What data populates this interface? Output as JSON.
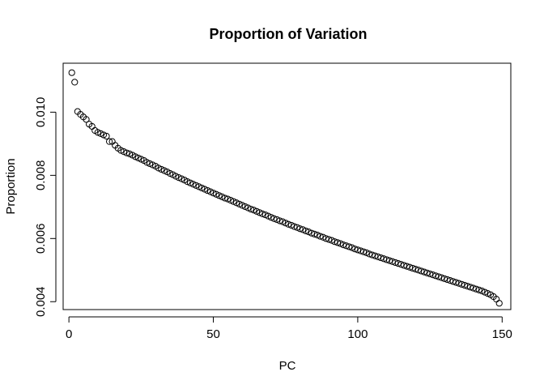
{
  "chart_data": {
    "type": "scatter",
    "title": "Proportion of Variation",
    "xlabel": "PC",
    "ylabel": "Proportion",
    "xlim": [
      -2,
      153
    ],
    "ylim": [
      0.00375,
      0.01155
    ],
    "xticks": [
      0,
      50,
      100,
      150
    ],
    "xtick_labels": [
      "0",
      "50",
      "100",
      "150"
    ],
    "yticks": [
      0.004,
      0.006,
      0.008,
      0.01
    ],
    "ytick_labels": [
      "0.004",
      "0.006",
      "0.008",
      "0.010"
    ],
    "grid": false,
    "marker": "open-circle",
    "color": "#000000",
    "x": [
      1,
      2,
      3,
      4,
      5,
      6,
      7,
      8,
      9,
      10,
      11,
      12,
      13,
      14,
      15,
      16,
      17,
      18,
      19,
      20,
      21,
      22,
      23,
      24,
      25,
      26,
      27,
      28,
      29,
      30,
      31,
      32,
      33,
      34,
      35,
      36,
      37,
      38,
      39,
      40,
      41,
      42,
      43,
      44,
      45,
      46,
      47,
      48,
      49,
      50,
      51,
      52,
      53,
      54,
      55,
      56,
      57,
      58,
      59,
      60,
      61,
      62,
      63,
      64,
      65,
      66,
      67,
      68,
      69,
      70,
      71,
      72,
      73,
      74,
      75,
      76,
      77,
      78,
      79,
      80,
      81,
      82,
      83,
      84,
      85,
      86,
      87,
      88,
      89,
      90,
      91,
      92,
      93,
      94,
      95,
      96,
      97,
      98,
      99,
      100,
      101,
      102,
      103,
      104,
      105,
      106,
      107,
      108,
      109,
      110,
      111,
      112,
      113,
      114,
      115,
      116,
      117,
      118,
      119,
      120,
      121,
      122,
      123,
      124,
      125,
      126,
      127,
      128,
      129,
      130,
      131,
      132,
      133,
      134,
      135,
      136,
      137,
      138,
      139,
      140,
      141,
      142,
      143,
      144,
      145,
      146,
      147,
      148,
      149
    ],
    "y": [
      0.01125,
      0.01095,
      0.01002,
      0.00993,
      0.00985,
      0.00977,
      0.00962,
      0.00955,
      0.00942,
      0.00936,
      0.00932,
      0.00928,
      0.00924,
      0.00907,
      0.00907,
      0.00895,
      0.00886,
      0.00879,
      0.00875,
      0.00871,
      0.00868,
      0.00864,
      0.00859,
      0.00855,
      0.00851,
      0.00847,
      0.00841,
      0.00837,
      0.00833,
      0.00829,
      0.00823,
      0.00819,
      0.00815,
      0.00811,
      0.00806,
      0.00802,
      0.00797,
      0.00793,
      0.00789,
      0.00785,
      0.0078,
      0.00776,
      0.00772,
      0.00768,
      0.00764,
      0.0076,
      0.00756,
      0.00752,
      0.00748,
      0.00744,
      0.0074,
      0.00736,
      0.00732,
      0.00728,
      0.00725,
      0.00721,
      0.00717,
      0.00713,
      0.00709,
      0.00705,
      0.00701,
      0.00697,
      0.00693,
      0.0069,
      0.00686,
      0.00682,
      0.00678,
      0.00675,
      0.00671,
      0.00667,
      0.00663,
      0.0066,
      0.00656,
      0.00653,
      0.00649,
      0.00645,
      0.00642,
      0.00638,
      0.00635,
      0.00631,
      0.00628,
      0.00624,
      0.00621,
      0.00617,
      0.00614,
      0.00611,
      0.00607,
      0.00604,
      0.006,
      0.00597,
      0.00594,
      0.0059,
      0.00587,
      0.00584,
      0.0058,
      0.00577,
      0.00574,
      0.00571,
      0.00567,
      0.00564,
      0.00561,
      0.00558,
      0.00555,
      0.00551,
      0.00548,
      0.00545,
      0.00542,
      0.00539,
      0.00536,
      0.00533,
      0.0053,
      0.00527,
      0.00524,
      0.00521,
      0.00518,
      0.00515,
      0.00512,
      0.00509,
      0.00506,
      0.00503,
      0.005,
      0.00497,
      0.00494,
      0.00491,
      0.00488,
      0.00485,
      0.00482,
      0.00479,
      0.00476,
      0.00473,
      0.0047,
      0.00467,
      0.00464,
      0.00461,
      0.00458,
      0.00455,
      0.00452,
      0.00449,
      0.00446,
      0.00443,
      0.0044,
      0.00437,
      0.00434,
      0.0043,
      0.00426,
      0.00422,
      0.00416,
      0.00408,
      0.00395
    ]
  }
}
